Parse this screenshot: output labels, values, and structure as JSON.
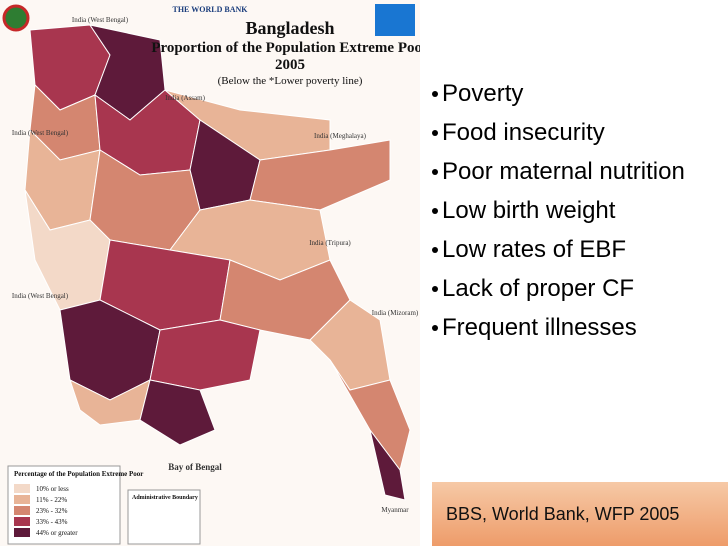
{
  "header": {
    "org": "THE WORLD BANK"
  },
  "map": {
    "title": "Bangladesh",
    "subtitle": "Proportion of the Population Extreme Poor",
    "year": "2005",
    "note": "(Below the *Lower poverty line)",
    "labels": [
      {
        "text": "India (West Bengal)",
        "pos": "top"
      },
      {
        "text": "India (Assam)",
        "pos": "upper"
      },
      {
        "text": "India (Meghalaya)",
        "pos": "ne"
      },
      {
        "text": "India (West Bengal)",
        "pos": "west"
      },
      {
        "text": "India (Tripura)",
        "pos": "east"
      },
      {
        "text": "India (West Bengal)",
        "pos": "sw"
      },
      {
        "text": "India (Mizoram)",
        "pos": "se"
      },
      {
        "text": "Bay of Bengal",
        "pos": "bay"
      },
      {
        "text": "Myanmar",
        "pos": "myanmar"
      }
    ],
    "legend": {
      "title": "Percentage of the Population Extreme Poor",
      "items": [
        "10% or less",
        "11% - 22%",
        "23% - 32%",
        "33% - 43%",
        "44% or greater"
      ]
    },
    "admin_title": "Administrative Boundary"
  },
  "bullets": [
    "Poverty",
    "Food insecurity",
    "Poor maternal nutrition",
    "Low birth weight",
    "Low rates of EBF",
    "Lack of proper CF",
    "Frequent illnesses"
  ],
  "footer": "BBS, World Bank, WFP 2005"
}
